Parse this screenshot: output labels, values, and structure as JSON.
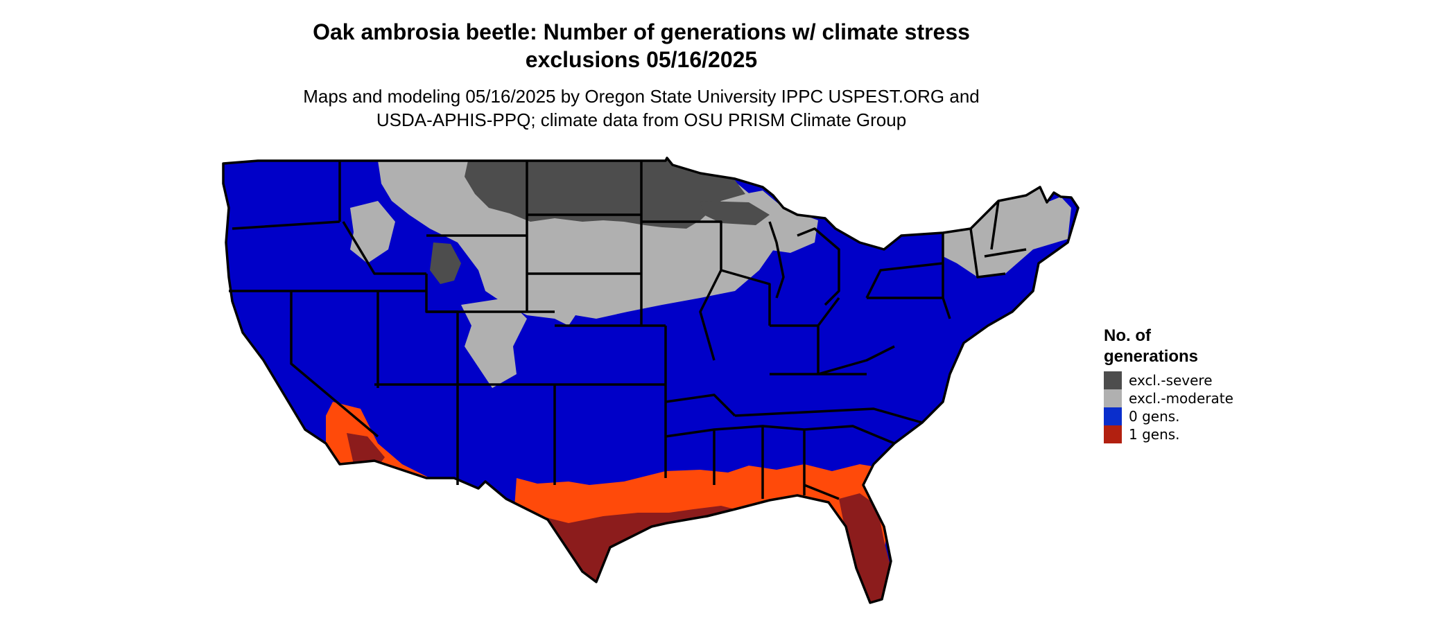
{
  "title": {
    "line1": "Oak ambrosia beetle: Number of generations w/ climate stress",
    "line2": "exclusions 05/16/2025"
  },
  "subtitle": {
    "line1": "Maps and modeling 05/16/2025 by Oregon State University IPPC USPEST.ORG and",
    "line2": "USDA-APHIS-PPQ; climate data from OSU PRISM Climate Group"
  },
  "legend": {
    "title_line1": "No. of",
    "title_line2": "generations",
    "items": [
      {
        "label": "excl.-severe",
        "color": "#4d4d4d"
      },
      {
        "label": "excl.-moderate",
        "color": "#b0b0b0"
      },
      {
        "label": "0 gens.",
        "color": "#0a2ecc"
      },
      {
        "label": "1 gens.",
        "color": "#b22010"
      }
    ]
  },
  "map_colors": {
    "zero_gens": "#0000c8",
    "one_gen_light": "#ff4a0a",
    "one_gen_dark": "#8c1c1c",
    "excl_moderate": "#b0b0b0",
    "excl_severe": "#4d4d4d",
    "state_borders": "#000000"
  }
}
